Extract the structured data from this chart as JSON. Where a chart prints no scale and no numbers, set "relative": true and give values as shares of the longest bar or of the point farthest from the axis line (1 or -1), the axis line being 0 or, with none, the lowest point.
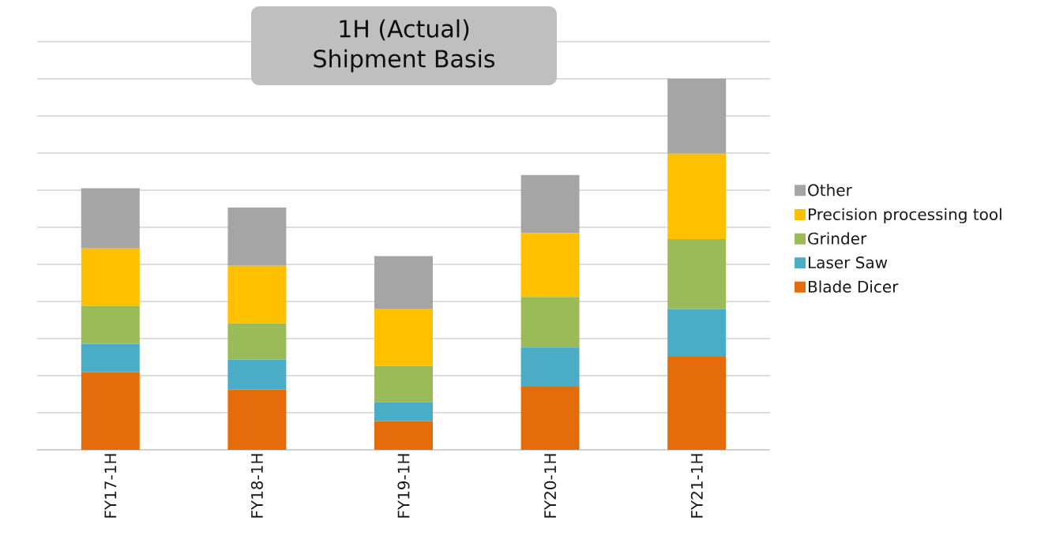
{
  "chart_data": {
    "type": "bar",
    "title": "1H (Actual)",
    "subtitle": "Shipment Basis",
    "categories": [
      "FY17-1H",
      "FY18-1H",
      "FY19-1H",
      "FY20-1H",
      "FY21-1H"
    ],
    "stacked": true,
    "relative": true,
    "grid": "y",
    "legend": "right",
    "series": [
      {
        "name": "Blade Dicer",
        "color": "#e46c0a",
        "values": [
          0.209,
          0.162,
          0.077,
          0.17,
          0.251
        ]
      },
      {
        "name": "Laser Saw",
        "color": "#4bacc6",
        "values": [
          0.077,
          0.081,
          0.051,
          0.106,
          0.128
        ]
      },
      {
        "name": "Grinder",
        "color": "#9bbb59",
        "values": [
          0.102,
          0.098,
          0.098,
          0.136,
          0.189
        ]
      },
      {
        "name": "Precision processing tool",
        "color": "#ffc000",
        "values": [
          0.155,
          0.155,
          0.153,
          0.172,
          0.23
        ]
      },
      {
        "name": "Other",
        "color": "#a5a5a5",
        "values": [
          0.162,
          0.157,
          0.143,
          0.157,
          0.202
        ]
      }
    ]
  }
}
